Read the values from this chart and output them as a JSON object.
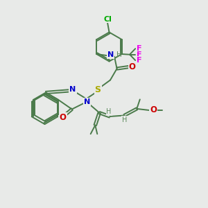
{
  "background_color": "#e8eae8",
  "bond_color": "#4a7a4a",
  "atom_colors": {
    "N": "#0000cc",
    "O": "#cc0000",
    "S": "#aaaa00",
    "Cl": "#00aa00",
    "F": "#ee00ee",
    "H": "#5a8a5a",
    "C": "#4a7a4a"
  },
  "figsize": [
    3.0,
    3.0
  ],
  "dpi": 100
}
